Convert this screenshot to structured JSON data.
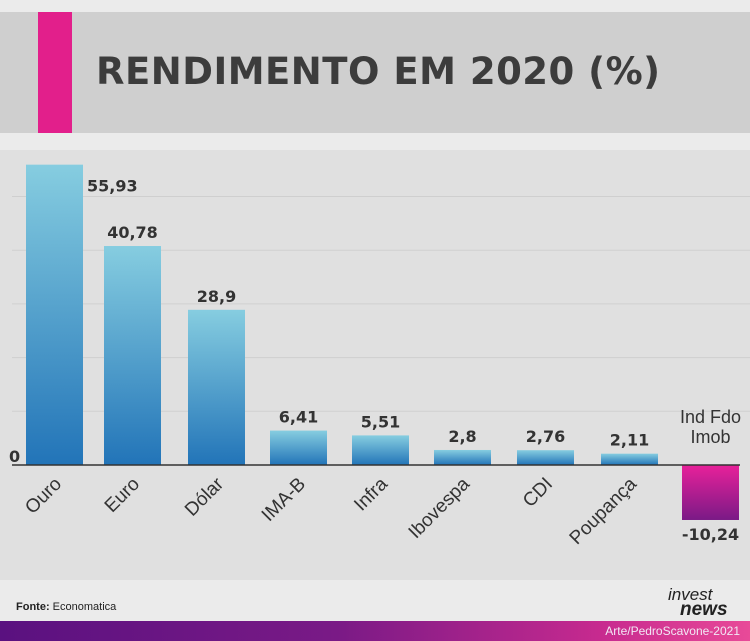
{
  "title": "RENDIMENTO EM 2020 (%)",
  "colors": {
    "accent": "#e21f8b",
    "bar_top": "#86cde0",
    "bar_bottom": "#2274b8",
    "neg_top": "#e8219a",
    "neg_bottom": "#7a1a86"
  },
  "chart_data": {
    "type": "bar",
    "title": "RENDIMENTO EM 2020 (%)",
    "categories": [
      "Ouro",
      "Euro",
      "Dólar",
      "IMA-B",
      "Infra",
      "Ibovespa",
      "CDI",
      "Poupança",
      "Ind Fdo\nImob"
    ],
    "values": [
      55.93,
      40.78,
      28.9,
      6.41,
      5.51,
      2.8,
      2.76,
      2.11,
      -10.24
    ],
    "value_labels": [
      "55,93",
      "40,78",
      "28,9",
      "6,41",
      "5,51",
      "2,8",
      "2,76",
      "2,11",
      "-10,24"
    ],
    "zero_label": "0",
    "ylim": [
      -12,
      56
    ],
    "grid": true,
    "xlabel": "",
    "ylabel": ""
  },
  "footer": {
    "source_label": "Fonte:",
    "source_value": "Economatica",
    "logo_top": "invest",
    "logo_bottom": "news",
    "credit": "Arte/PedroScavone-2021"
  }
}
